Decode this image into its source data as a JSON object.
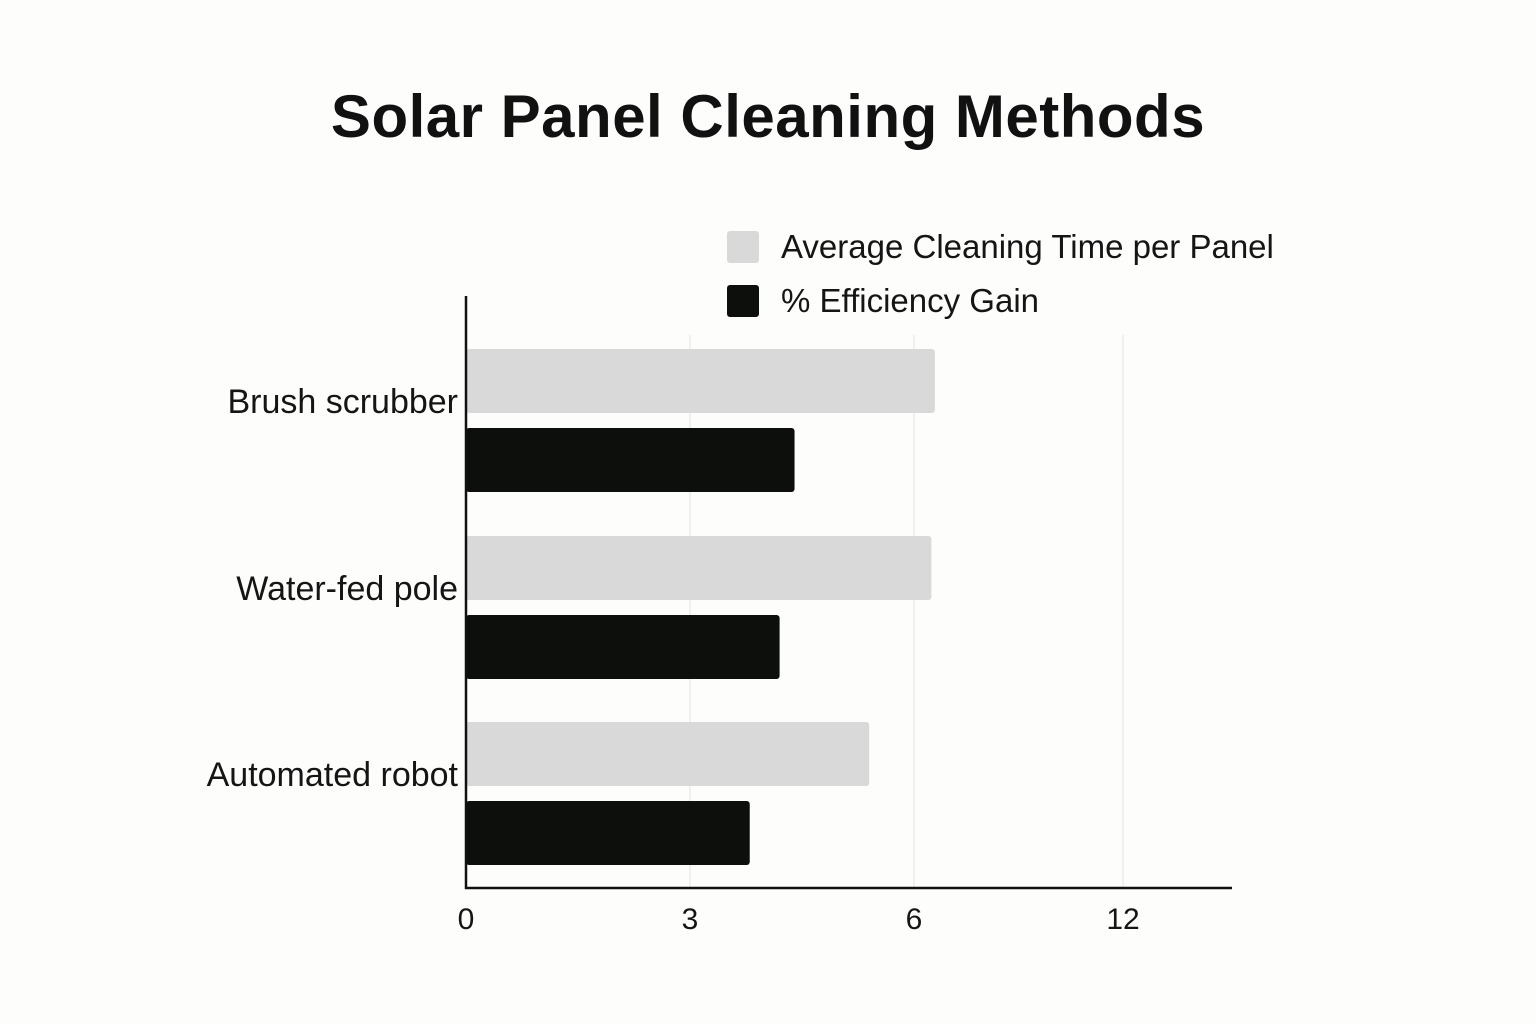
{
  "chart_data": {
    "type": "bar",
    "orientation": "horizontal",
    "title": "Solar Panel Cleaning Methods",
    "categories": [
      "Brush scrubber",
      "Water-fed pole",
      "Automated robot"
    ],
    "series": [
      {
        "name": "Average Cleaning Time per Panel",
        "color": "#d9d9d9",
        "values": [
          6.6,
          6.5,
          5.4
        ]
      },
      {
        "name": "% Efficiency Gain",
        "color": "#0d0f0d",
        "values": [
          4.4,
          4.2,
          3.8
        ]
      }
    ],
    "x_ticks": [
      {
        "value": 0,
        "label": "0"
      },
      {
        "value": 3,
        "label": "3"
      },
      {
        "value": 6,
        "label": "6"
      },
      {
        "value": 12,
        "label": "12"
      }
    ],
    "xlabel": "",
    "ylabel": "",
    "grid": "vertical",
    "legend_position": "top-right"
  }
}
